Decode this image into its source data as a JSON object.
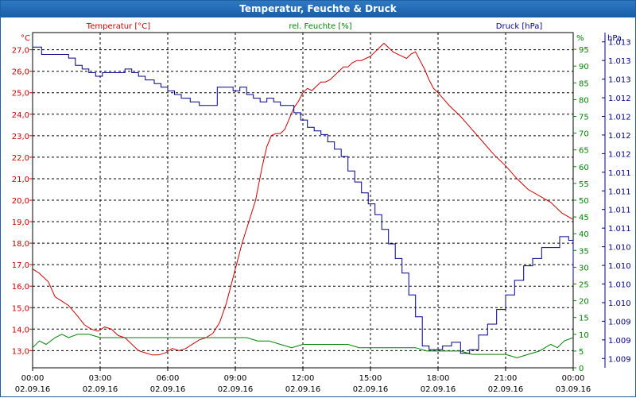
{
  "window": {
    "title": "Temperatur, Feuchte & Druck"
  },
  "chart_data": {
    "type": "line",
    "title": "Temperatur, Feuchte & Druck",
    "colors": {
      "temperature": "#cc0000",
      "humidity": "#008000",
      "pressure": "#00008b",
      "grid": "#000000"
    },
    "x_axis": {
      "range_hours": [
        0,
        24
      ],
      "ticks": [
        {
          "hour": 0,
          "time": "00:00",
          "date": "02.09.16"
        },
        {
          "hour": 3,
          "time": "03:00",
          "date": "02.09.16"
        },
        {
          "hour": 6,
          "time": "06:00",
          "date": "02.09.16"
        },
        {
          "hour": 9,
          "time": "09:00",
          "date": "02.09.16"
        },
        {
          "hour": 12,
          "time": "12:00",
          "date": "02.09.16"
        },
        {
          "hour": 15,
          "time": "15:00",
          "date": "02.09.16"
        },
        {
          "hour": 18,
          "time": "18:00",
          "date": "02.09.16"
        },
        {
          "hour": 21,
          "time": "21:00",
          "date": "02.09.16"
        },
        {
          "hour": 24,
          "time": "00:00",
          "date": "03.09.16"
        }
      ]
    },
    "axes": {
      "temperature": {
        "label": "Temperatur [°C]",
        "unit": "°C",
        "range": [
          12.2,
          27.8
        ],
        "ticks": [
          "27,0",
          "26,0",
          "25,0",
          "24,0",
          "23,0",
          "22,0",
          "21,0",
          "20,0",
          "19,0",
          "18,0",
          "17,0",
          "16,0",
          "15,0",
          "14,0",
          "13,0"
        ]
      },
      "humidity": {
        "label": "rel. Feuchte [%]",
        "unit": "%",
        "range": [
          0,
          100
        ],
        "ticks": [
          "95",
          "90",
          "85",
          "80",
          "75",
          "70",
          "65",
          "60",
          "55",
          "50",
          "45",
          "40",
          "35",
          "30",
          "25",
          "20",
          "15",
          "10",
          "5",
          "0"
        ]
      },
      "pressure": {
        "label": "Druck [hPa]",
        "unit": "hPa",
        "range": [
          1008.7,
          1013.3
        ],
        "ticks": [
          "1.013",
          "1.013",
          "1.013",
          "1.012",
          "1.012",
          "1.012",
          "1.012",
          "1.011",
          "1.011",
          "1.011",
          "1.011",
          "1.010",
          "1.010",
          "1.010",
          "1.010",
          "1.009",
          "1.009",
          "1.009"
        ]
      }
    },
    "series": [
      {
        "name": "Temperatur [°C]",
        "axis": "temperature",
        "x": [
          0,
          0.3,
          0.7,
          1,
          1.3,
          1.6,
          2,
          2.3,
          2.6,
          2.9,
          3.2,
          3.5,
          3.8,
          4.1,
          4.4,
          4.7,
          5,
          5.3,
          5.6,
          5.9,
          6.2,
          6.5,
          6.8,
          7.1,
          7.4,
          7.7,
          8,
          8.3,
          8.6,
          9,
          9.3,
          9.6,
          9.9,
          10.2,
          10.4,
          10.6,
          10.8,
          11,
          11.2,
          11.4,
          11.6,
          11.8,
          12,
          12.2,
          12.4,
          12.6,
          12.8,
          13,
          13.2,
          13.4,
          13.6,
          13.8,
          14,
          14.2,
          14.4,
          14.6,
          14.8,
          15,
          15.2,
          15.4,
          15.6,
          15.8,
          16,
          16.2,
          16.4,
          16.6,
          16.8,
          17,
          17.2,
          17.4,
          17.6,
          17.8,
          18,
          18.5,
          19,
          19.5,
          20,
          20.5,
          21,
          21.5,
          22,
          22.5,
          23,
          23.5,
          24
        ],
        "values": [
          16.8,
          16.6,
          16.2,
          15.5,
          15.3,
          15.1,
          14.6,
          14.2,
          14.0,
          13.9,
          14.1,
          14.0,
          13.7,
          13.6,
          13.3,
          13.0,
          12.9,
          12.8,
          12.8,
          12.9,
          13.1,
          13.0,
          13.1,
          13.3,
          13.5,
          13.6,
          13.8,
          14.3,
          15.2,
          16.8,
          18.0,
          19.0,
          20.0,
          21.6,
          22.5,
          23.0,
          23.1,
          23.1,
          23.3,
          23.8,
          24.3,
          24.6,
          25.0,
          25.2,
          25.1,
          25.3,
          25.5,
          25.5,
          25.6,
          25.8,
          26.0,
          26.2,
          26.2,
          26.4,
          26.5,
          26.5,
          26.6,
          26.7,
          26.9,
          27.1,
          27.3,
          27.1,
          26.9,
          26.8,
          26.7,
          26.6,
          26.8,
          26.9,
          26.5,
          26.1,
          25.6,
          25.2,
          25.0,
          24.4,
          23.9,
          23.3,
          22.7,
          22.1,
          21.6,
          21.0,
          20.5,
          20.2,
          19.9,
          19.4,
          19.1
        ]
      },
      {
        "name": "rel. Feuchte [%]",
        "axis": "humidity",
        "x": [
          0,
          0.3,
          0.6,
          1,
          1.3,
          1.6,
          2,
          2.5,
          3,
          3.5,
          4,
          5,
          6,
          7,
          8,
          9,
          9.5,
          10,
          10.5,
          11,
          11.5,
          12,
          12.5,
          13,
          13.5,
          14,
          14.5,
          15,
          15.5,
          16,
          16.5,
          17,
          17.5,
          18,
          18.5,
          19,
          19.5,
          20,
          20.5,
          21,
          21.5,
          22,
          22.5,
          23,
          23.3,
          23.6,
          24
        ],
        "values": [
          6,
          8,
          7,
          9,
          10,
          9,
          10,
          10,
          9,
          9,
          9,
          9,
          9,
          9,
          9,
          9,
          9,
          8,
          8,
          7,
          6,
          7,
          7,
          7,
          7,
          7,
          6,
          6,
          6,
          6,
          6,
          6,
          5,
          5,
          5,
          5,
          4,
          4,
          4,
          4,
          3,
          4,
          5,
          7,
          6,
          8,
          9
        ]
      },
      {
        "name": "Druck [hPa]",
        "axis": "pressure",
        "x": [
          0,
          0.4,
          0.8,
          1.2,
          1.6,
          1.9,
          2.2,
          2.5,
          2.8,
          3.1,
          3.6,
          4.1,
          4.4,
          4.7,
          5.0,
          5.4,
          5.7,
          6.0,
          6.3,
          6.6,
          7.0,
          7.4,
          7.8,
          8.2,
          8.5,
          8.9,
          9.2,
          9.5,
          9.8,
          10.1,
          10.4,
          10.7,
          11.0,
          11.3,
          11.6,
          11.9,
          12.2,
          12.5,
          12.8,
          13.1,
          13.4,
          13.7,
          14.0,
          14.3,
          14.6,
          14.9,
          15.2,
          15.5,
          15.8,
          16.1,
          16.4,
          16.7,
          17.0,
          17.3,
          17.6,
          17.9,
          18.2,
          18.6,
          19.0,
          19.4,
          19.8,
          20.2,
          20.6,
          21.0,
          21.4,
          21.8,
          22.2,
          22.6,
          23.0,
          23.4,
          23.8,
          24
        ],
        "values": [
          1013.1,
          1013.0,
          1013.0,
          1013.0,
          1012.95,
          1012.85,
          1012.8,
          1012.75,
          1012.7,
          1012.75,
          1012.75,
          1012.8,
          1012.75,
          1012.7,
          1012.65,
          1012.6,
          1012.55,
          1012.5,
          1012.45,
          1012.4,
          1012.35,
          1012.3,
          1012.3,
          1012.55,
          1012.55,
          1012.5,
          1012.55,
          1012.45,
          1012.4,
          1012.35,
          1012.4,
          1012.35,
          1012.3,
          1012.3,
          1012.2,
          1012.1,
          1012.0,
          1011.95,
          1011.9,
          1011.8,
          1011.7,
          1011.6,
          1011.4,
          1011.25,
          1011.1,
          1010.95,
          1010.8,
          1010.6,
          1010.4,
          1010.2,
          1010.0,
          1009.7,
          1009.4,
          1009.0,
          1008.95,
          1008.95,
          1009.0,
          1009.05,
          1008.9,
          1008.95,
          1009.15,
          1009.3,
          1009.5,
          1009.7,
          1009.9,
          1010.1,
          1010.2,
          1010.35,
          1010.35,
          1010.5,
          1010.45,
          1009.9
        ]
      }
    ]
  }
}
